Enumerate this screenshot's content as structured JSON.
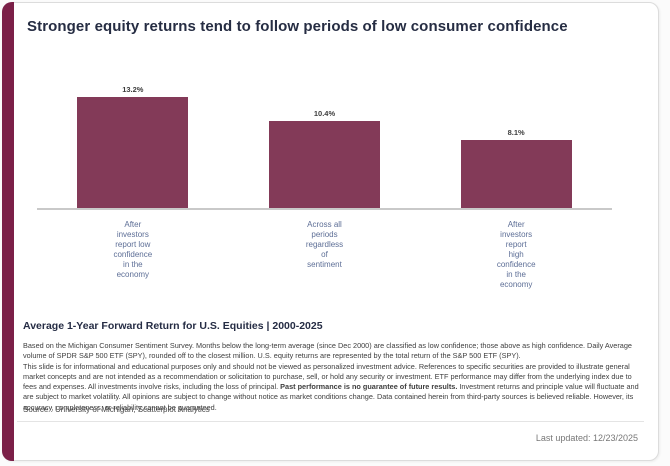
{
  "page": {
    "title": "Stronger equity returns tend to follow periods of low consumer confidence"
  },
  "chart_data": {
    "type": "bar",
    "title": "Average 1-Year Forward Return for U.S. Equities | 2000-2025",
    "categories": [
      "After investors report low confidence in the economy",
      "Across all periods regardless of sentiment",
      "After investors report high confidence in the economy"
    ],
    "category_lines": [
      [
        "After",
        "investors",
        "report low",
        "confidence",
        "in the",
        "economy"
      ],
      [
        "Across all",
        "periods",
        "regardless",
        "of",
        "sentiment"
      ],
      [
        "After",
        "investors",
        "report",
        "high",
        "confidence",
        "in the",
        "economy"
      ]
    ],
    "values": [
      13.2,
      10.4,
      8.1
    ],
    "value_labels": [
      "13.2%",
      "10.4%",
      "8.1%"
    ],
    "ylabel": "",
    "xlabel": "",
    "ylim": [
      0,
      14
    ],
    "grid": false,
    "legend": false,
    "bar_color": "#833a58"
  },
  "footnotes": {
    "methodology": "Based on the Michigan Consumer Sentiment Survey. Months below the long-term average (since Dec 2000) are classified as low confidence; those above as high confidence. Daily Average volume of SPDR S&P 500 ETF (SPY), rounded off to the closest million. U.S. equity returns are represented by the total return of the S&P 500 ETF (SPY).",
    "disclaimer_pre_bold": "This slide is for informational and educational purposes only and should not be viewed as personalized investment advice. References to specific securities are provided to illustrate general market concepts and are not intended as a recommendation or solicitation to purchase, sell, or hold any security or investment. ETF performance may differ from the underlying index due to fees and expenses. All investments involve risks, including the loss of principal. ",
    "disclaimer_bold": "Past performance is no guarantee of future results.",
    "disclaimer_post_bold": " Investment returns and principle value will fluctuate and are subject to market volatility. All opinions are subject to change without notice as market conditions change. Data contained herein from third-party sources is believed reliable. However, its accuracy, completeness, or reliability cannot be guaranteed.",
    "source": "Source : University of Michigan, Scatterplot Analytics"
  },
  "footer": {
    "last_updated": "Last updated: 12/23/2025"
  },
  "colors": {
    "accent": "#7b2048",
    "bar": "#833a58",
    "title_text": "#262d43",
    "axis_label_text": "#5d6e96"
  }
}
